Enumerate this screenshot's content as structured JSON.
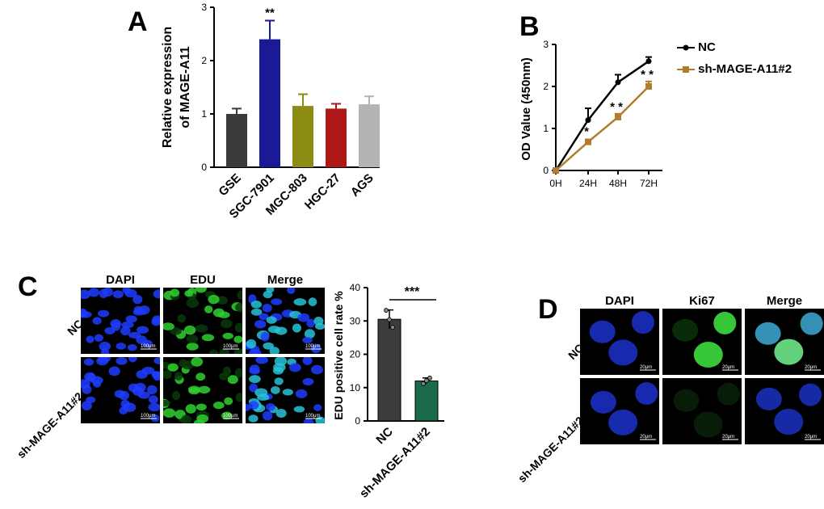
{
  "panels": {
    "a": "A",
    "b": "B",
    "c": "C",
    "d": "D"
  },
  "colors": {
    "gse": "#3a3a3a",
    "sgc": "#1a1a96",
    "mgc": "#8c8c14",
    "hgc": "#b01818",
    "ags": "#b4b4b4",
    "nc_line": "#000000",
    "sh_line": "#b07d2c",
    "bar_nc": "#3c3c3c",
    "bar_sh": "#1a6b4a",
    "dapi": "#1f3cff",
    "edu": "#2fd02f",
    "merge": "#29c2d8"
  },
  "chart_data": [
    {
      "id": "A",
      "type": "bar",
      "title": "",
      "ylabel": "Relative expression of MAGE-A11",
      "ylabel_lines": [
        "Relative expression",
        "of MAGE-A11"
      ],
      "categories": [
        "GSE",
        "SGC-7901",
        "MGC-803",
        "HGC-27",
        "AGS"
      ],
      "values": [
        1.0,
        2.4,
        1.15,
        1.1,
        1.18
      ],
      "errors": [
        0.1,
        0.35,
        0.22,
        0.09,
        0.15
      ],
      "annotations": [
        "",
        "**",
        "",
        "",
        ""
      ],
      "ylim": [
        0,
        3
      ],
      "yticks": [
        "0",
        "1",
        "2",
        "3"
      ]
    },
    {
      "id": "B",
      "type": "line",
      "ylabel": "OD Value (450nm)",
      "x": [
        "0H",
        "24H",
        "48H",
        "72H"
      ],
      "series": [
        {
          "name": "NC",
          "values": [
            0.0,
            1.2,
            2.1,
            2.6
          ],
          "errors": [
            0.0,
            0.28,
            0.18,
            0.1
          ],
          "marker": "circle"
        },
        {
          "name": "sh-MAGE-A11#2",
          "values": [
            0.0,
            0.68,
            1.27,
            2.0
          ],
          "errors": [
            0.0,
            0.06,
            0.08,
            0.12
          ],
          "marker": "square"
        }
      ],
      "annotations": [
        "",
        "*",
        "* *",
        "* *"
      ],
      "ylim": [
        0,
        3
      ],
      "yticks": [
        "0",
        "1",
        "2",
        "3"
      ]
    },
    {
      "id": "C",
      "type": "bar",
      "ylabel": "EDU positive cell rate %",
      "categories": [
        "NC",
        "sh-MAGE-A11#2"
      ],
      "values": [
        30.5,
        12.0
      ],
      "errors": [
        2.8,
        0.9
      ],
      "points": [
        [
          33.2,
          30.4,
          28.1
        ],
        [
          11.2,
          12.1,
          12.9
        ]
      ],
      "significance": "***",
      "ylim": [
        0,
        40
      ],
      "yticks": [
        "0",
        "10",
        "20",
        "30",
        "40"
      ]
    }
  ],
  "panel_c_images": {
    "columns": [
      "DAPI",
      "EDU",
      "Merge"
    ],
    "rows": [
      "NC",
      "sh-MAGE-A11#2"
    ],
    "scale": "100μm"
  },
  "panel_d_images": {
    "columns": [
      "DAPI",
      "Ki67",
      "Merge"
    ],
    "rows": [
      "NC",
      "sh-MAGE-A11#2"
    ],
    "scale": "20μm"
  }
}
